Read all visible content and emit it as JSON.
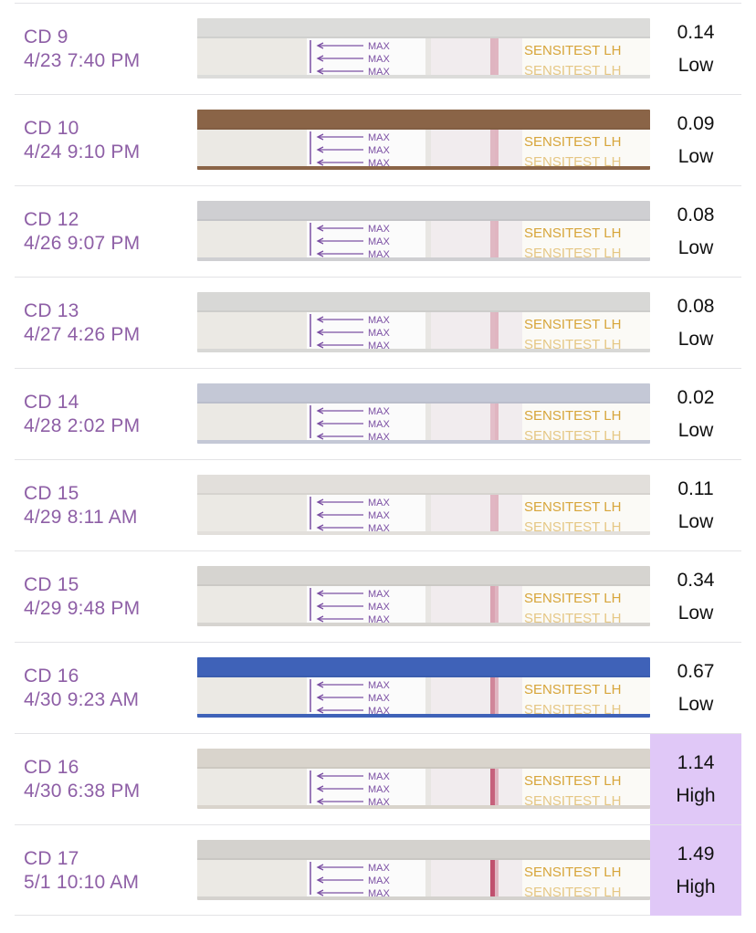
{
  "colors": {
    "accent_text": "#8e5fa6",
    "high_highlight": "#e0c8f7",
    "strip_line": "#c0506e",
    "strip_print": "#d7a53a",
    "arrow_ink": "#7b4fa3"
  },
  "strip_printed_text": {
    "max": "MAX",
    "brand": "SENSITEST LH"
  },
  "tests": [
    {
      "cycle_day": "CD 9",
      "datetime": "4/23 7:40 PM",
      "value": "0.14",
      "level": "Low",
      "bg": "#dcdcda",
      "test_line": 0.15
    },
    {
      "cycle_day": "CD 10",
      "datetime": "4/24 9:10 PM",
      "value": "0.09",
      "level": "Low",
      "bg": "#8a6447",
      "test_line": 0.1
    },
    {
      "cycle_day": "CD 12",
      "datetime": "4/26 9:07 PM",
      "value": "0.08",
      "level": "Low",
      "bg": "#cfcfd2",
      "test_line": 0.1
    },
    {
      "cycle_day": "CD 13",
      "datetime": "4/27 4:26 PM",
      "value": "0.08",
      "level": "Low",
      "bg": "#d8d8d6",
      "test_line": 0.1
    },
    {
      "cycle_day": "CD 14",
      "datetime": "4/28 2:02 PM",
      "value": "0.02",
      "level": "Low",
      "bg": "#c4c8d6",
      "test_line": 0.05
    },
    {
      "cycle_day": "CD 15",
      "datetime": "4/29 8:11 AM",
      "value": "0.11",
      "level": "Low",
      "bg": "#e2dfdb",
      "test_line": 0.12
    },
    {
      "cycle_day": "CD 15",
      "datetime": "4/29 9:48 PM",
      "value": "0.34",
      "level": "Low",
      "bg": "#d6d4d0",
      "test_line": 0.3
    },
    {
      "cycle_day": "CD 16",
      "datetime": "4/30 9:23 AM",
      "value": "0.67",
      "level": "Low",
      "bg": "#3f62b8",
      "test_line": 0.55
    },
    {
      "cycle_day": "CD 16",
      "datetime": "4/30 6:38 PM",
      "value": "1.14",
      "level": "High",
      "bg": "#d9d4cc",
      "test_line": 0.85
    },
    {
      "cycle_day": "CD 17",
      "datetime": "5/1 10:10 AM",
      "value": "1.49",
      "level": "High",
      "bg": "#d4d2ce",
      "test_line": 1.0
    }
  ]
}
